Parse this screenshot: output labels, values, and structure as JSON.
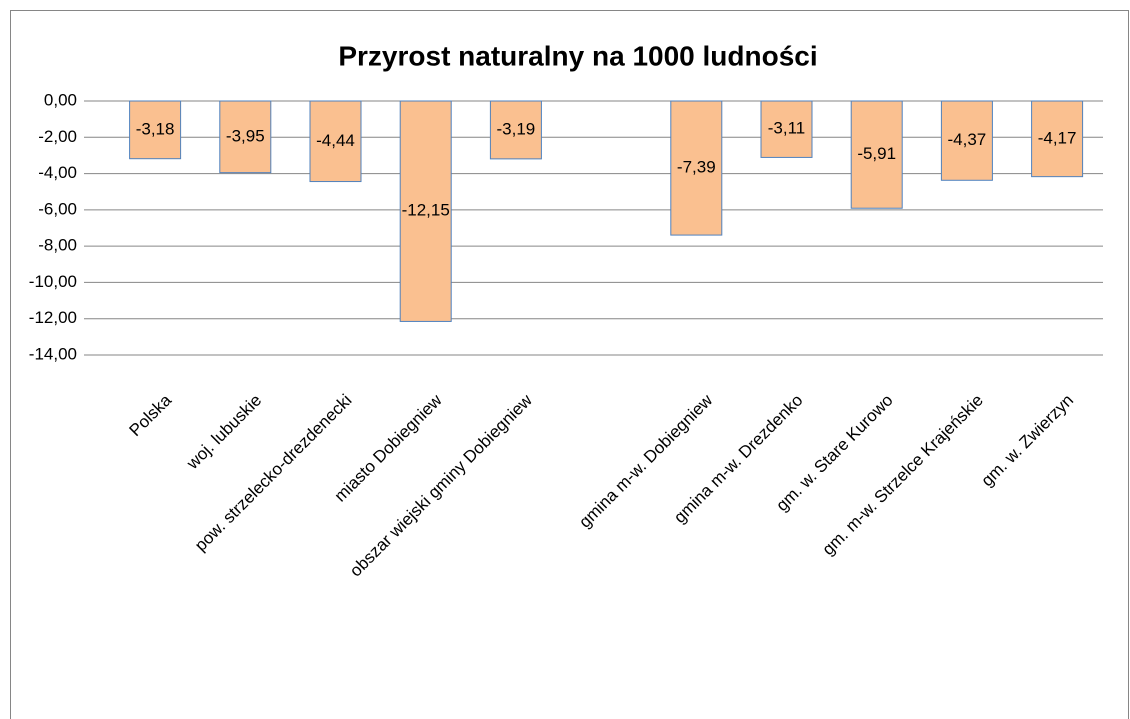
{
  "chart_data": {
    "type": "bar",
    "title": "Przyrost naturalny na 1000 ludności",
    "categories": [
      "Polska",
      "woj. lubuskie",
      "pow. strzelecko-drezdenecki",
      "miasto Dobiegniew",
      "obszar wiejski gminy Dobiegniew",
      null,
      "gmina m-w. Dobiegniew",
      "gmina m-w. Drezdenko",
      "gm. w. Stare Kurowo",
      "gm. m-w. Strzelce Krajeńskie",
      "gm. w. Zwierzyn"
    ],
    "values": [
      -3.18,
      -3.95,
      -4.44,
      -12.15,
      -3.19,
      null,
      -7.39,
      -3.11,
      -5.91,
      -4.37,
      -4.17
    ],
    "value_labels": [
      "-3,18",
      "-3,95",
      "-4,44",
      "-12,15",
      "-3,19",
      null,
      "-7,39",
      "-3,11",
      "-5,91",
      "-4,37",
      "-4,17"
    ],
    "color": "#fac090",
    "ylim": [
      -14,
      0
    ],
    "yticks": [
      {
        "value": 0,
        "label": "0,00"
      },
      {
        "value": -2,
        "label": "-2,00"
      },
      {
        "value": -4,
        "label": "-4,00"
      },
      {
        "value": -6,
        "label": "-6,00"
      },
      {
        "value": -8,
        "label": "-8,00"
      },
      {
        "value": -10,
        "label": "-10,00"
      },
      {
        "value": -12,
        "label": "-12,00"
      },
      {
        "value": -14,
        "label": "-14,00"
      }
    ],
    "grid": true
  }
}
